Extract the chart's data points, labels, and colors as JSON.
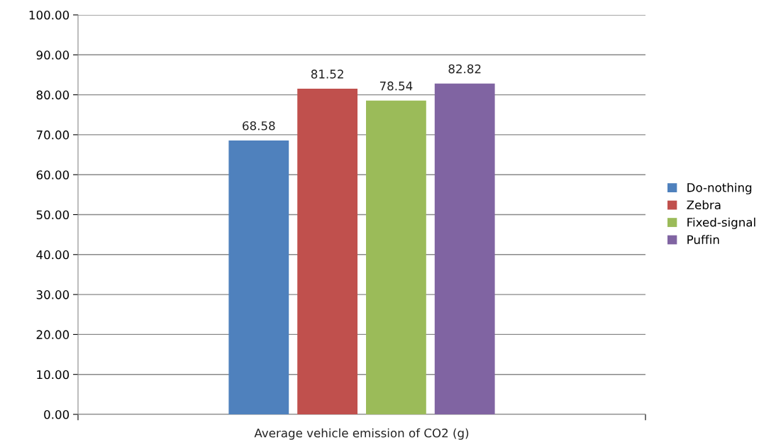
{
  "chart_data": {
    "type": "bar",
    "categories": [
      "Average vehicle emission of CO2 (g)"
    ],
    "series": [
      {
        "name": "Do-nothing",
        "color": "#4f81bd",
        "values": [
          68.58
        ]
      },
      {
        "name": "Zebra",
        "color": "#c0504d",
        "values": [
          81.52
        ]
      },
      {
        "name": "Fixed-signal",
        "color": "#9bbb59",
        "values": [
          78.54
        ]
      },
      {
        "name": "Puffin",
        "color": "#8064a2",
        "values": [
          82.82
        ]
      }
    ],
    "ylim": [
      0,
      100
    ],
    "yticks": [
      {
        "value": 0,
        "label": "0.00"
      },
      {
        "value": 10,
        "label": "10.00"
      },
      {
        "value": 20,
        "label": "20.00"
      },
      {
        "value": 30,
        "label": "30.00"
      },
      {
        "value": 40,
        "label": "40.00"
      },
      {
        "value": 50,
        "label": "50.00"
      },
      {
        "value": 60,
        "label": "60.00"
      },
      {
        "value": 70,
        "label": "70.00"
      },
      {
        "value": 80,
        "label": "80.00"
      },
      {
        "value": 90,
        "label": "90.00"
      },
      {
        "value": 100,
        "label": "100.00"
      }
    ],
    "grid": "y",
    "legend": "right",
    "data_labels": true
  }
}
